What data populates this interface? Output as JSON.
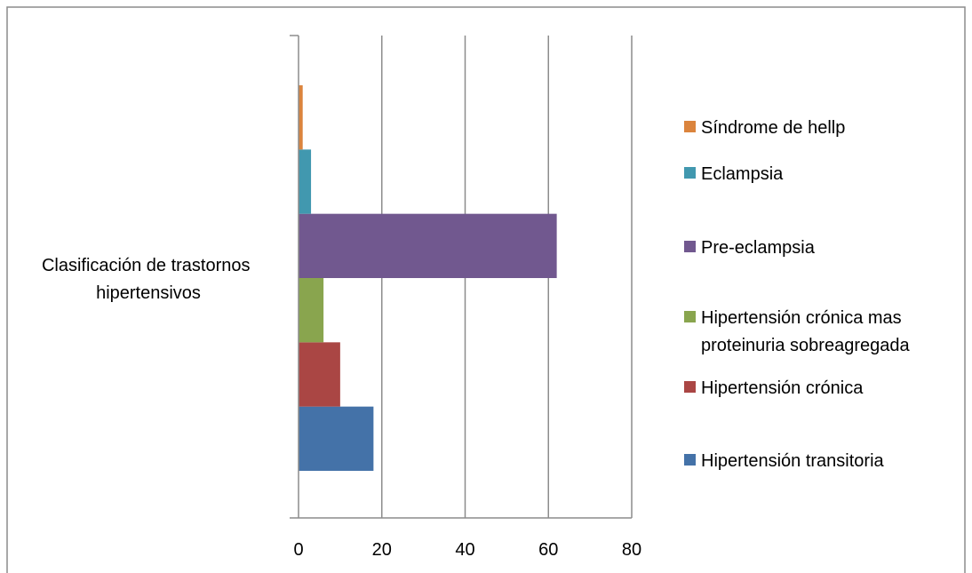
{
  "chart_data": {
    "type": "bar",
    "orientation": "horizontal",
    "category_label": [
      "Clasificación de trastornos",
      "hipertensivos"
    ],
    "series": [
      {
        "name": "Hipertensión transitoria",
        "values": [
          18
        ],
        "color": "#4472A8"
      },
      {
        "name": "Hipertensión crónica",
        "values": [
          10
        ],
        "color": "#AA4644"
      },
      {
        "name": "Hipertensión crónica mas proteinuria sobreagregada",
        "legend_lines": [
          "Hipertensión crónica mas",
          "proteinuria sobreagregada"
        ],
        "values": [
          6
        ],
        "color": "#89A54E"
      },
      {
        "name": "Pre-eclampsia",
        "values": [
          62
        ],
        "color": "#71588F"
      },
      {
        "name": "Eclampsia",
        "values": [
          3
        ],
        "color": "#4198AF"
      },
      {
        "name": "Síndrome de hellp",
        "values": [
          1
        ],
        "color": "#DB843D"
      }
    ],
    "xlim": [
      0,
      80
    ],
    "xticks": [
      "0",
      "20",
      "40",
      "60",
      "80"
    ],
    "grid": true,
    "legend_position": "right"
  }
}
